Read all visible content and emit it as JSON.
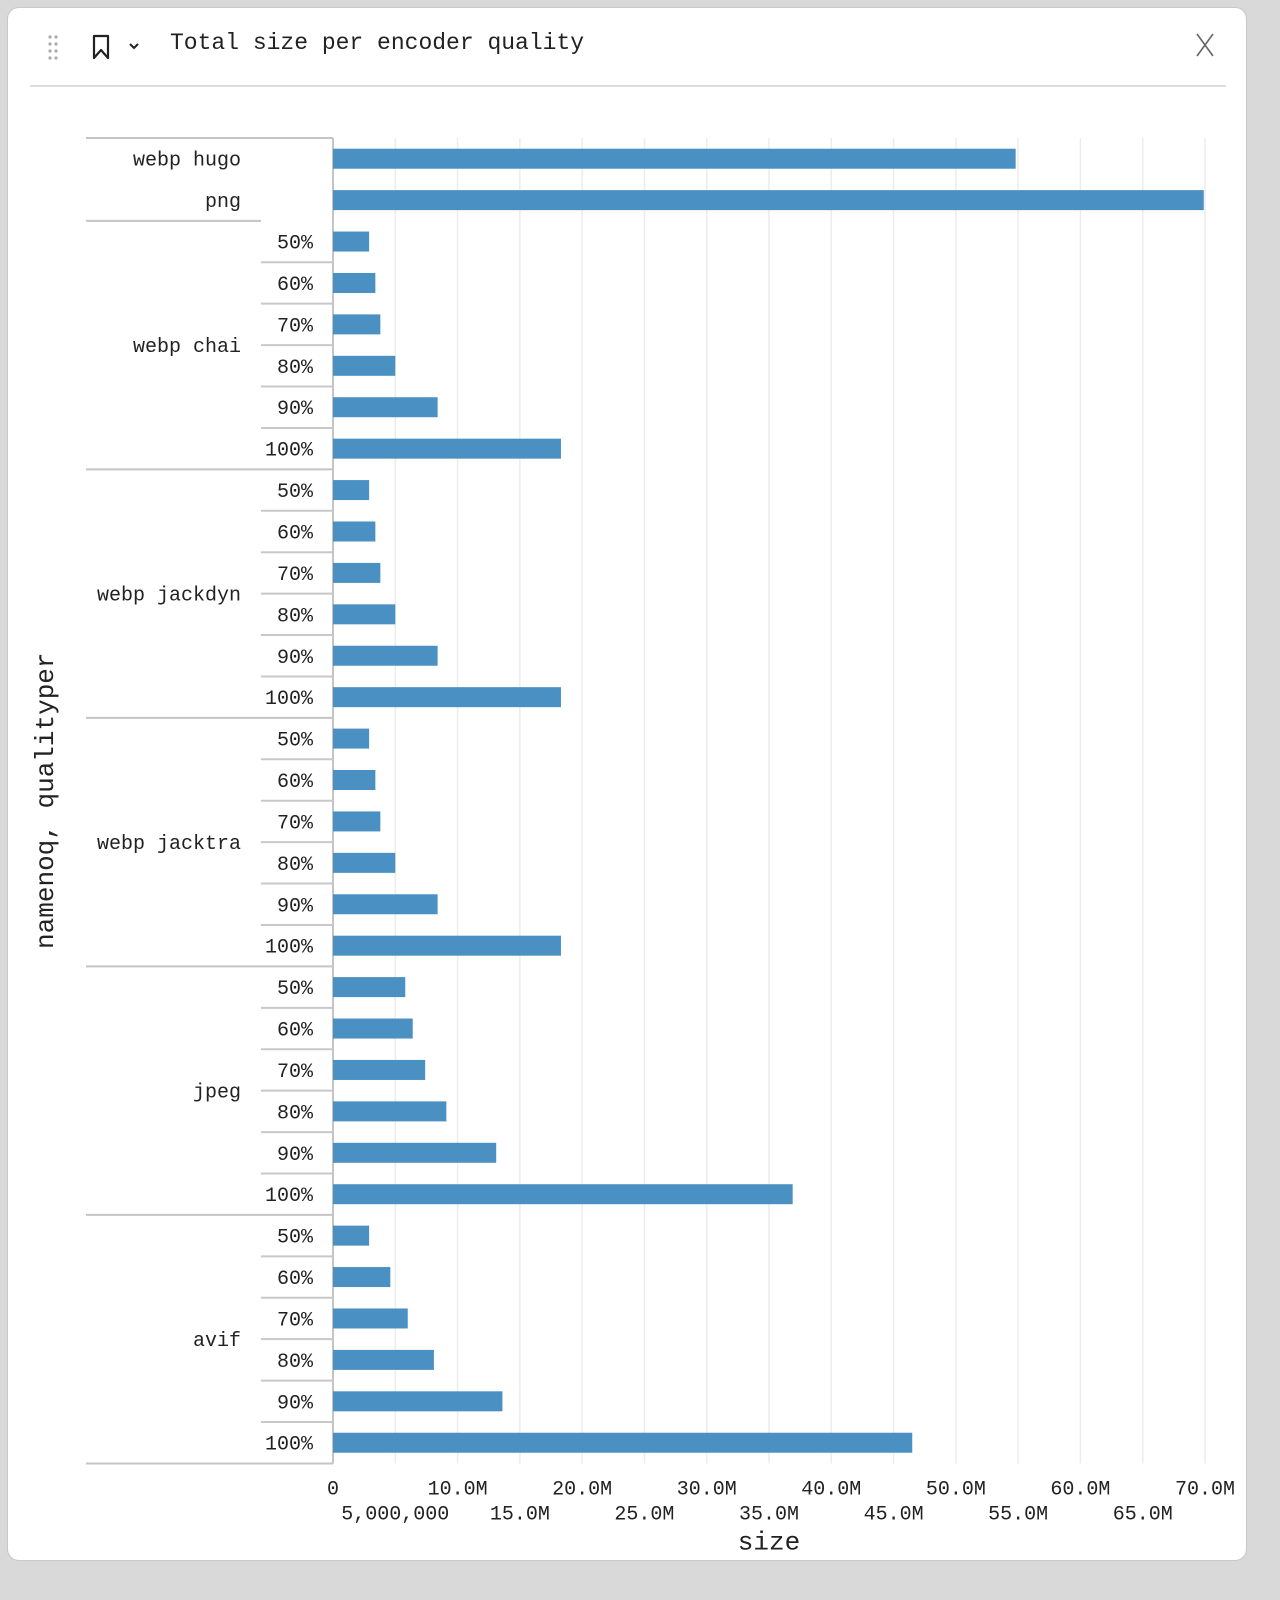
{
  "header": {
    "title": "Total size per encoder quality",
    "drag_icon": "drag-handle-icon",
    "bookmark_icon": "bookmark-icon",
    "chevron_icon": "chevron-down-icon",
    "close_icon": "close-icon"
  },
  "chart_data": {
    "type": "bar",
    "orientation": "horizontal",
    "title": "",
    "xlabel": "size",
    "ylabel": "namenoq, qualityper",
    "xlim": [
      0,
      70000000
    ],
    "grid": true,
    "bar_color": "#4a90c2",
    "x_ticks": [
      "0",
      "5,000,000",
      "10.0M",
      "15.0M",
      "20.0M",
      "25.0M",
      "30.0M",
      "35.0M",
      "40.0M",
      "45.0M",
      "50.0M",
      "55.0M",
      "60.0M",
      "65.0M",
      "70.0M"
    ],
    "x_tick_values": [
      0,
      5000000,
      10000000,
      15000000,
      20000000,
      25000000,
      30000000,
      35000000,
      40000000,
      45000000,
      50000000,
      55000000,
      60000000,
      65000000,
      70000000
    ],
    "groups": [
      {
        "name": "webp hugo",
        "rows": [
          {
            "quality": "",
            "value": 54800000
          }
        ]
      },
      {
        "name": "png",
        "rows": [
          {
            "quality": "",
            "value": 69900000
          }
        ]
      },
      {
        "name": "webp chai",
        "rows": [
          {
            "quality": "50%",
            "value": 2900000
          },
          {
            "quality": "60%",
            "value": 3400000
          },
          {
            "quality": "70%",
            "value": 3800000
          },
          {
            "quality": "80%",
            "value": 5000000
          },
          {
            "quality": "90%",
            "value": 8400000
          },
          {
            "quality": "100%",
            "value": 18300000
          }
        ]
      },
      {
        "name": "webp jackdyn",
        "rows": [
          {
            "quality": "50%",
            "value": 2900000
          },
          {
            "quality": "60%",
            "value": 3400000
          },
          {
            "quality": "70%",
            "value": 3800000
          },
          {
            "quality": "80%",
            "value": 5000000
          },
          {
            "quality": "90%",
            "value": 8400000
          },
          {
            "quality": "100%",
            "value": 18300000
          }
        ]
      },
      {
        "name": "webp jacktra",
        "rows": [
          {
            "quality": "50%",
            "value": 2900000
          },
          {
            "quality": "60%",
            "value": 3400000
          },
          {
            "quality": "70%",
            "value": 3800000
          },
          {
            "quality": "80%",
            "value": 5000000
          },
          {
            "quality": "90%",
            "value": 8400000
          },
          {
            "quality": "100%",
            "value": 18300000
          }
        ]
      },
      {
        "name": "jpeg",
        "rows": [
          {
            "quality": "50%",
            "value": 5800000
          },
          {
            "quality": "60%",
            "value": 6400000
          },
          {
            "quality": "70%",
            "value": 7400000
          },
          {
            "quality": "80%",
            "value": 9100000
          },
          {
            "quality": "90%",
            "value": 13100000
          },
          {
            "quality": "100%",
            "value": 36900000
          }
        ]
      },
      {
        "name": "avif",
        "rows": [
          {
            "quality": "50%",
            "value": 2900000
          },
          {
            "quality": "60%",
            "value": 4600000
          },
          {
            "quality": "70%",
            "value": 6000000
          },
          {
            "quality": "80%",
            "value": 8100000
          },
          {
            "quality": "90%",
            "value": 13600000
          },
          {
            "quality": "100%",
            "value": 46500000
          }
        ]
      }
    ]
  }
}
